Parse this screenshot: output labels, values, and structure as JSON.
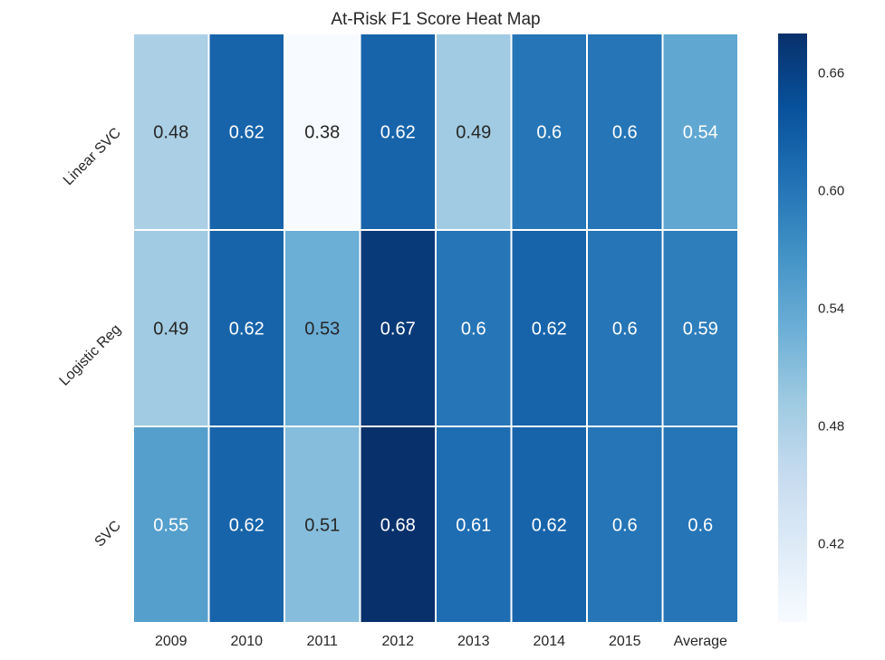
{
  "chart_data": {
    "type": "heatmap",
    "title": "At-Risk F1 Score Heat Map",
    "columns": [
      "2009",
      "2010",
      "2011",
      "2012",
      "2013",
      "2014",
      "2015",
      "Average"
    ],
    "rows": [
      "Linear SVC",
      "Logistic Reg",
      "SVC"
    ],
    "values": [
      [
        0.48,
        0.62,
        0.38,
        0.62,
        0.49,
        0.6,
        0.6,
        0.54
      ],
      [
        0.49,
        0.62,
        0.53,
        0.67,
        0.6,
        0.62,
        0.6,
        0.59
      ],
      [
        0.55,
        0.62,
        0.51,
        0.68,
        0.61,
        0.62,
        0.6,
        0.6
      ]
    ],
    "cell_labels": [
      [
        "0.48",
        "0.62",
        "0.38",
        "0.62",
        "0.49",
        "0.6",
        "0.6",
        "0.54"
      ],
      [
        "0.49",
        "0.62",
        "0.53",
        "0.67",
        "0.6",
        "0.62",
        "0.6",
        "0.59"
      ],
      [
        "0.55",
        "0.62",
        "0.51",
        "0.68",
        "0.61",
        "0.62",
        "0.6",
        "0.6"
      ]
    ],
    "colorbar": {
      "colormap": "Blues",
      "range": [
        0.38,
        0.68
      ],
      "ticks": [
        0.42,
        0.48,
        0.54,
        0.6,
        0.66
      ],
      "tick_labels": [
        "0.42",
        "0.48",
        "0.54",
        "0.60",
        "0.66"
      ],
      "position": "right"
    },
    "colors": {
      "low": "#f7fbff",
      "high": "#08306b",
      "text_dark": "#262626",
      "text_light": "#ffffff",
      "grid": "#ffffff"
    }
  }
}
